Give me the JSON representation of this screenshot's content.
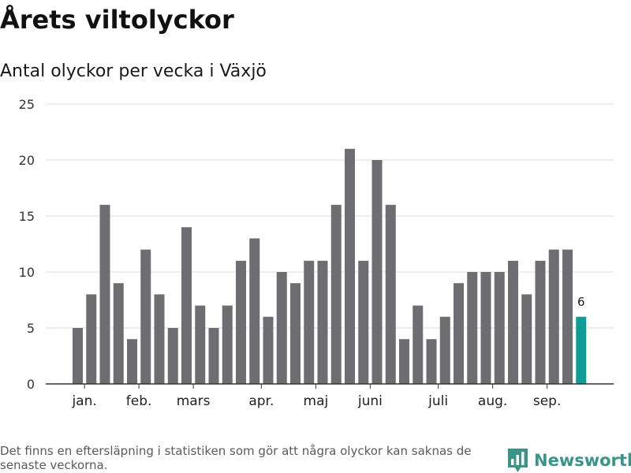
{
  "title": "Årets viltolyckor",
  "subtitle": "Antal olyckor per vecka i Växjö",
  "footnote": "Det finns en eftersläpning i statistiken som gör att några olyckor kan saknas de senaste veckorna.",
  "brand": {
    "name": "Newsworthy",
    "icon": "bar-chart-logo-icon",
    "color": "#3a9488"
  },
  "colors": {
    "bar": "#6e6e72",
    "highlight": "#0e9e95",
    "grid": "#dcdcdc",
    "axis": "#333333"
  },
  "chart_data": {
    "type": "bar",
    "values": [
      5,
      8,
      16,
      9,
      4,
      12,
      8,
      5,
      14,
      7,
      5,
      7,
      11,
      13,
      6,
      10,
      9,
      11,
      11,
      16,
      21,
      11,
      20,
      16,
      4,
      7,
      4,
      6,
      9,
      10,
      10,
      10,
      11,
      8,
      11,
      12,
      12,
      6
    ],
    "highlight_index": 37,
    "highlight_label": "6",
    "ylim": [
      0,
      25
    ],
    "yticks": [
      0,
      5,
      10,
      15,
      20,
      25
    ],
    "month_labels": [
      {
        "label": "jan.",
        "at": 0.5
      },
      {
        "label": "feb.",
        "at": 4.5
      },
      {
        "label": "mars",
        "at": 8.5
      },
      {
        "label": "apr.",
        "at": 13.5
      },
      {
        "label": "maj",
        "at": 17.5
      },
      {
        "label": "juni",
        "at": 21.5
      },
      {
        "label": "juli",
        "at": 26.5
      },
      {
        "label": "aug.",
        "at": 30.5
      },
      {
        "label": "sep.",
        "at": 34.5
      }
    ],
    "grid": true,
    "xlabel": "",
    "ylabel": ""
  }
}
